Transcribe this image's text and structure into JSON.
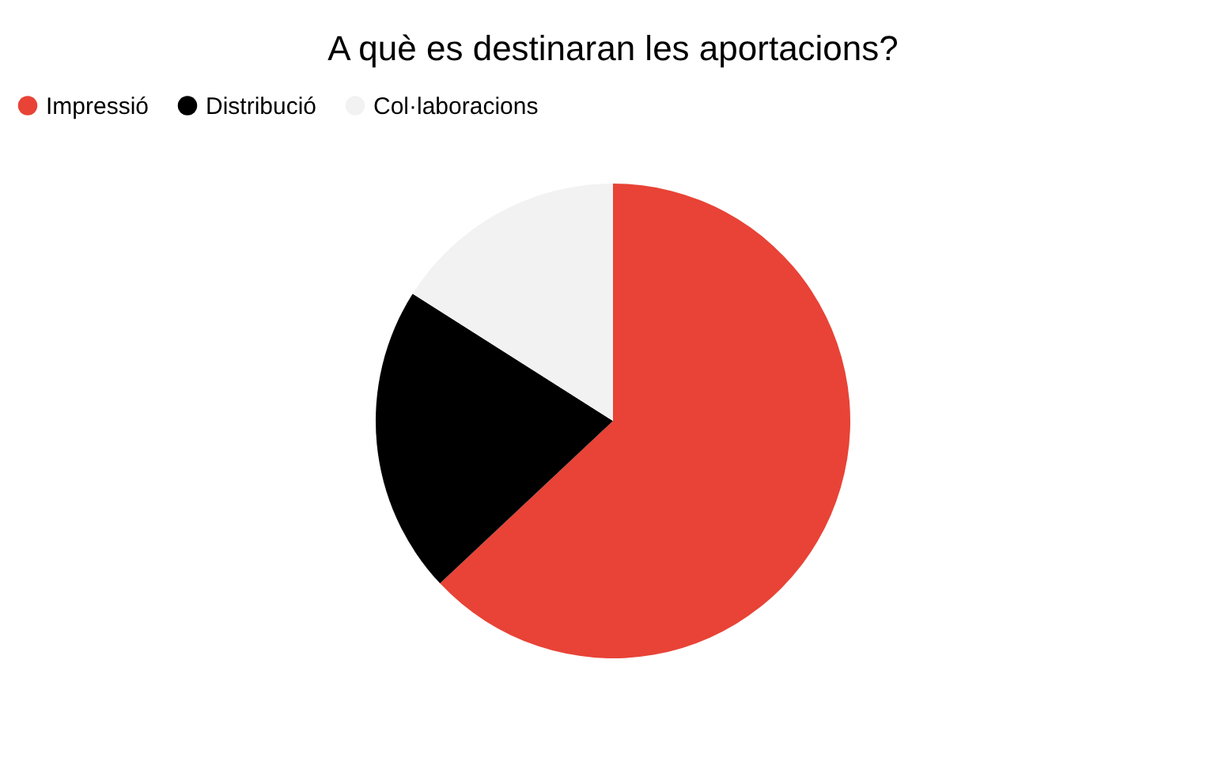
{
  "chart_data": {
    "type": "pie",
    "title": "A què es destinaran les aportacions?",
    "categories": [
      "Impressió",
      "Distribució",
      "Col·laboracions"
    ],
    "values": [
      63,
      21,
      16
    ],
    "colors": [
      "#e84336",
      "#000000",
      "#f2f2f2"
    ],
    "legend": "top"
  }
}
